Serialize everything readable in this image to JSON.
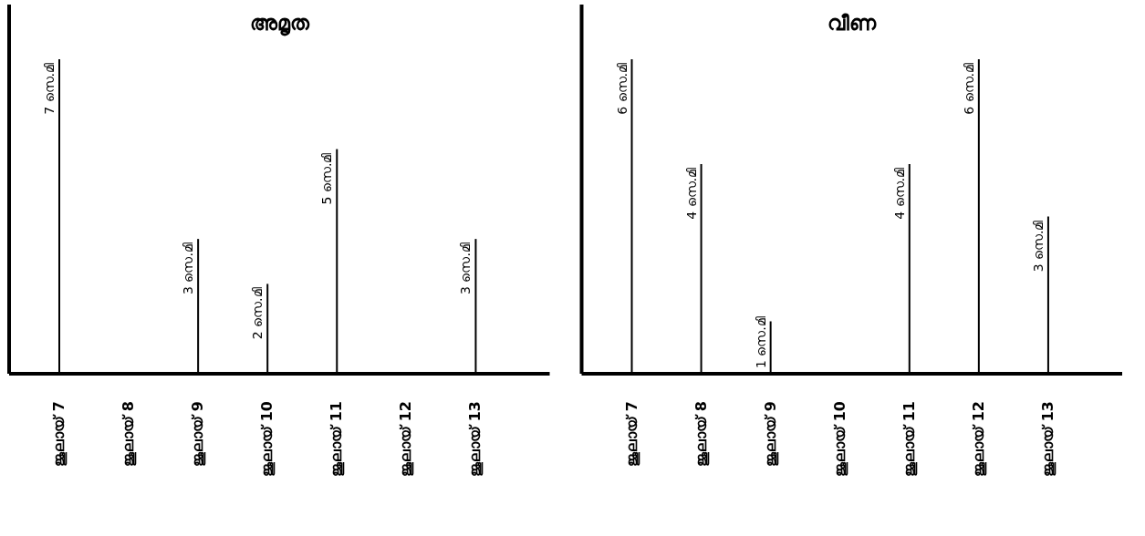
{
  "chart_data": [
    {
      "type": "bar",
      "title": "അമൃത",
      "categories": [
        "ജൂലായ് 7",
        "ജൂലായ് 8",
        "ജൂലായ് 9",
        "ജൂലായ് 10",
        "ജൂലായ് 11",
        "ജൂലായ് 12",
        "ജൂലായ് 13"
      ],
      "values": [
        7,
        null,
        3,
        2,
        5,
        null,
        3
      ],
      "color": "#000000",
      "value_labels": [
        "7 സെ.മി",
        null,
        "3 സെ.മി",
        "2 സെ.മി",
        "5 സെ.മി",
        null,
        "3 സെ.മി"
      ]
    },
    {
      "type": "bar",
      "title": "വീണ",
      "categories": [
        "ജൂലായ് 7",
        "ജൂലായ് 8",
        "ജൂലായ് 9",
        "ജൂലായ് 10",
        "ജൂലായ് 11",
        "ജൂലായ് 12",
        "ജൂലായ് 13"
      ],
      "values": [
        6,
        4,
        1,
        null,
        4,
        6,
        3
      ],
      "color": "#000000",
      "value_labels": [
        "6 സെ.മി",
        "4 സെ.മി",
        "1 സെ.മി",
        null,
        "4 സെ.മി",
        "6 സെ.മി",
        "3 സെ.മി"
      ]
    }
  ]
}
